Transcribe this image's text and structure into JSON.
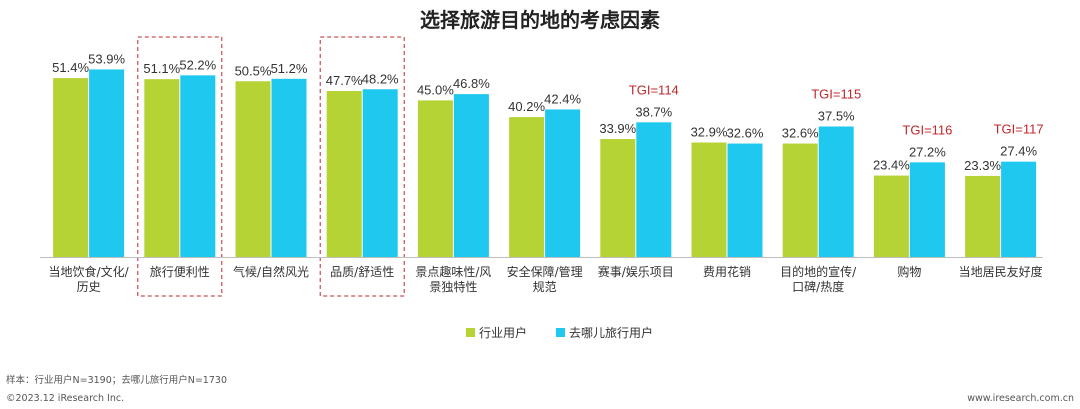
{
  "page": {
    "sample_note": "样本：行业用户N=3190；去哪儿旅行用户N=1730",
    "copyright": "©2023.12 iResearch Inc.",
    "website": "www.iresearch.com.cn"
  },
  "chart_data": {
    "type": "bar",
    "title": "选择旅游目的地的考虑因素",
    "categories": [
      [
        "当地饮食/文化/",
        "历史"
      ],
      [
        "旅行便利性"
      ],
      [
        "气候/自然风光"
      ],
      [
        "品质/舒适性"
      ],
      [
        "景点趣味性/风",
        "景独特性"
      ],
      [
        "安全保障/管理",
        "规范"
      ],
      [
        "赛事/娱乐项目"
      ],
      [
        "费用花销"
      ],
      [
        "目的地的宣传/",
        "口碑/热度"
      ],
      [
        "购物"
      ],
      [
        "当地居民友好度"
      ]
    ],
    "series": [
      {
        "name": "行业用户",
        "color": "#b5d334",
        "values": [
          51.4,
          51.1,
          50.5,
          47.7,
          45.0,
          40.2,
          33.9,
          32.9,
          32.6,
          23.4,
          23.3
        ],
        "labels": [
          "51.4%",
          "51.1%",
          "50.5%",
          "47.7%",
          "45.0%",
          "40.2%",
          "33.9%",
          "32.9%",
          "32.6%",
          "23.4%",
          "23.3%"
        ]
      },
      {
        "name": "去哪儿旅行用户",
        "color": "#1ec8ee",
        "values": [
          53.9,
          52.2,
          51.2,
          48.2,
          46.8,
          42.4,
          38.7,
          32.6,
          37.5,
          27.2,
          27.4
        ],
        "labels": [
          "53.9%",
          "52.2%",
          "51.2%",
          "48.2%",
          "46.8%",
          "42.4%",
          "38.7%",
          "32.6%",
          "37.5%",
          "27.2%",
          "27.4%"
        ]
      }
    ],
    "annotations": [
      {
        "category_index": 6,
        "text": "TGI=114"
      },
      {
        "category_index": 8,
        "text": "TGI=115"
      },
      {
        "category_index": 9,
        "text": "TGI=116"
      },
      {
        "category_index": 10,
        "text": "TGI=117"
      }
    ],
    "highlighted_categories": [
      1,
      3
    ],
    "ylim": [
      0,
      60
    ],
    "grid": false,
    "legend_position": "bottom-center",
    "highlight_color": "#c0272d"
  }
}
